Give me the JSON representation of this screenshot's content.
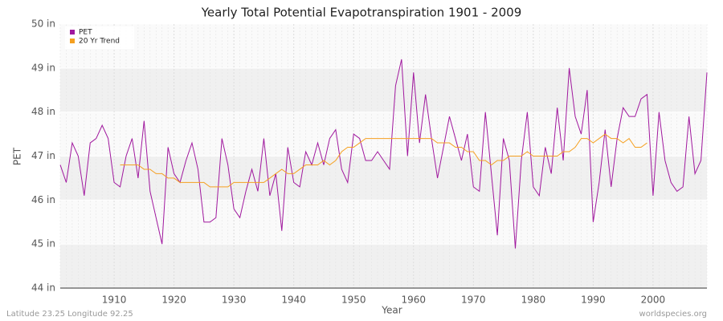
{
  "chart_data": {
    "type": "line",
    "title": "Yearly Total Potential Evapotranspiration 1901 - 2009",
    "x_label": "Year",
    "y_label": "PET",
    "x": [
      1901,
      1902,
      1903,
      1904,
      1905,
      1906,
      1907,
      1908,
      1909,
      1910,
      1911,
      1912,
      1913,
      1914,
      1915,
      1916,
      1917,
      1918,
      1919,
      1920,
      1921,
      1922,
      1923,
      1924,
      1925,
      1926,
      1927,
      1928,
      1929,
      1930,
      1931,
      1932,
      1933,
      1934,
      1935,
      1936,
      1937,
      1938,
      1939,
      1940,
      1941,
      1942,
      1943,
      1944,
      1945,
      1946,
      1947,
      1948,
      1949,
      1950,
      1951,
      1952,
      1953,
      1954,
      1955,
      1956,
      1957,
      1958,
      1959,
      1960,
      1961,
      1962,
      1963,
      1964,
      1965,
      1966,
      1967,
      1968,
      1969,
      1970,
      1971,
      1972,
      1973,
      1974,
      1975,
      1976,
      1977,
      1978,
      1979,
      1980,
      1981,
      1982,
      1983,
      1984,
      1985,
      1986,
      1987,
      1988,
      1989,
      1990,
      1991,
      1992,
      1993,
      1994,
      1995,
      1996,
      1997,
      1998,
      1999,
      2000,
      2001,
      2002,
      2003,
      2004,
      2005,
      2006,
      2007,
      2008,
      2009
    ],
    "series": [
      {
        "name": "PET",
        "color": "#a0189e",
        "values": [
          46.8,
          46.4,
          47.3,
          47.0,
          46.1,
          47.3,
          47.4,
          47.7,
          47.4,
          46.4,
          46.3,
          47.0,
          47.4,
          46.5,
          47.8,
          46.2,
          45.6,
          45.0,
          47.2,
          46.6,
          46.4,
          46.9,
          47.3,
          46.7,
          45.5,
          45.5,
          45.6,
          47.4,
          46.8,
          45.8,
          45.6,
          46.2,
          46.7,
          46.2,
          47.4,
          46.1,
          46.6,
          45.3,
          47.2,
          46.4,
          46.3,
          47.1,
          46.8,
          47.3,
          46.8,
          47.4,
          47.6,
          46.7,
          46.4,
          47.5,
          47.4,
          46.9,
          46.9,
          47.1,
          46.9,
          46.7,
          48.6,
          49.2,
          47.0,
          48.9,
          47.3,
          48.4,
          47.4,
          46.5,
          47.2,
          47.9,
          47.4,
          46.9,
          47.5,
          46.3,
          46.2,
          48.0,
          46.6,
          45.2,
          47.4,
          46.9,
          44.9,
          46.9,
          48.0,
          46.3,
          46.1,
          47.2,
          46.6,
          48.1,
          46.9,
          49.0,
          47.9,
          47.5,
          48.5,
          45.5,
          46.4,
          47.6,
          46.3,
          47.4,
          48.1,
          47.9,
          47.9,
          48.3,
          48.4,
          46.1,
          48.0,
          46.9,
          46.4,
          46.2,
          46.3,
          47.9,
          46.6,
          46.9,
          48.9
        ]
      },
      {
        "name": "20 Yr Trend",
        "color": "#f5a020",
        "values": [
          null,
          null,
          null,
          null,
          null,
          null,
          null,
          null,
          null,
          null,
          46.8,
          46.8,
          46.8,
          46.8,
          46.7,
          46.7,
          46.6,
          46.6,
          46.5,
          46.5,
          46.4,
          46.4,
          46.4,
          46.4,
          46.4,
          46.3,
          46.3,
          46.3,
          46.3,
          46.4,
          46.4,
          46.4,
          46.4,
          46.4,
          46.4,
          46.5,
          46.6,
          46.7,
          46.6,
          46.6,
          46.7,
          46.8,
          46.8,
          46.8,
          46.9,
          46.8,
          46.9,
          47.1,
          47.2,
          47.2,
          47.3,
          47.4,
          47.4,
          47.4,
          47.4,
          47.4,
          47.4,
          47.4,
          47.4,
          47.4,
          47.4,
          47.4,
          47.4,
          47.3,
          47.3,
          47.3,
          47.2,
          47.2,
          47.1,
          47.1,
          46.9,
          46.9,
          46.8,
          46.9,
          46.9,
          47.0,
          47.0,
          47.0,
          47.1,
          47.0,
          47.0,
          47.0,
          47.0,
          47.0,
          47.1,
          47.1,
          47.2,
          47.4,
          47.4,
          47.3,
          47.4,
          47.5,
          47.4,
          47.4,
          47.3,
          47.4,
          47.2,
          47.2,
          47.3,
          null,
          null,
          null,
          null,
          null,
          null,
          null,
          null,
          null,
          null
        ]
      }
    ],
    "xlim": [
      1901,
      2009
    ],
    "xticks": [
      1910,
      1920,
      1930,
      1940,
      1950,
      1960,
      1970,
      1980,
      1990,
      2000
    ],
    "ylim": [
      44,
      50
    ],
    "yticks": [
      {
        "value": 44,
        "label": "44 in"
      },
      {
        "value": 45,
        "label": "45 in"
      },
      {
        "value": 46,
        "label": "46 in"
      },
      {
        "value": 47,
        "label": "47 in"
      },
      {
        "value": 48,
        "label": "48 in"
      },
      {
        "value": 49,
        "label": "49 in"
      },
      {
        "value": 50,
        "label": "50 in"
      }
    ],
    "grid": true,
    "legend": "top-left",
    "footer_left": "Latitude 23.25 Longitude 92.25",
    "footer_right": "worldspecies.org"
  }
}
